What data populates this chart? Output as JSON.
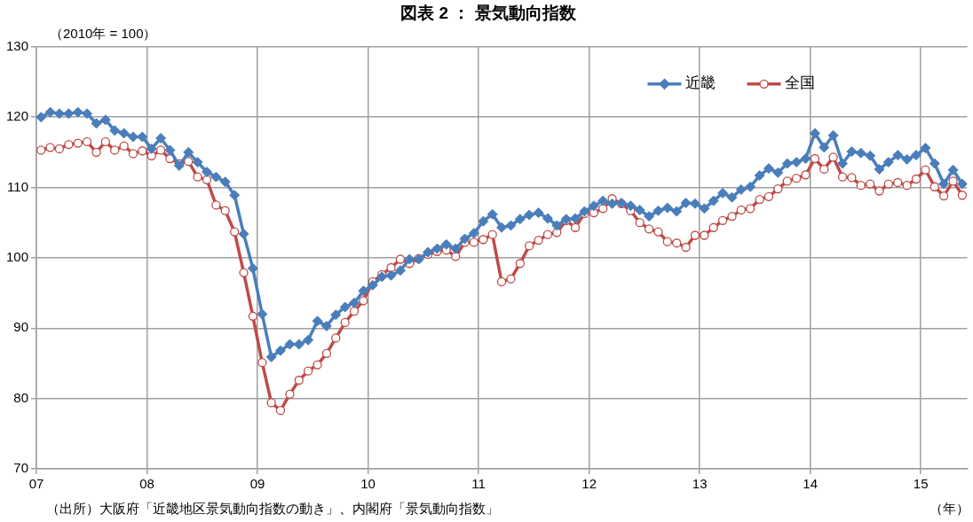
{
  "chart_data": {
    "type": "line",
    "title": "図表 2 ： 景気動向指数",
    "ylabel": "（2010年 = 100）",
    "xlabel": "（年）",
    "annotations": [
      "（出所）大阪府「近畿地区景気動向指数の動き」、内閣府「景気動向指数」"
    ],
    "x": [
      2007.042,
      2007.125,
      2007.208,
      2007.292,
      2007.375,
      2007.458,
      2007.542,
      2007.625,
      2007.708,
      2007.792,
      2007.875,
      2007.958,
      2008.042,
      2008.125,
      2008.208,
      2008.292,
      2008.375,
      2008.458,
      2008.542,
      2008.625,
      2008.708,
      2008.792,
      2008.875,
      2008.958,
      2009.042,
      2009.125,
      2009.208,
      2009.292,
      2009.375,
      2009.458,
      2009.542,
      2009.625,
      2009.708,
      2009.792,
      2009.875,
      2009.958,
      2010.042,
      2010.125,
      2010.208,
      2010.292,
      2010.375,
      2010.458,
      2010.542,
      2010.625,
      2010.708,
      2010.792,
      2010.875,
      2010.958,
      2011.042,
      2011.125,
      2011.208,
      2011.292,
      2011.375,
      2011.458,
      2011.542,
      2011.625,
      2011.708,
      2011.792,
      2011.875,
      2011.958,
      2012.042,
      2012.125,
      2012.208,
      2012.292,
      2012.375,
      2012.458,
      2012.542,
      2012.625,
      2012.708,
      2012.792,
      2012.875,
      2012.958,
      2013.042,
      2013.125,
      2013.208,
      2013.292,
      2013.375,
      2013.458,
      2013.542,
      2013.625,
      2013.708,
      2013.792,
      2013.875,
      2013.958,
      2014.042,
      2014.125,
      2014.208,
      2014.292,
      2014.375,
      2014.458,
      2014.542,
      2014.625,
      2014.708,
      2014.792,
      2014.875,
      2014.958,
      2015.042,
      2015.125,
      2015.208,
      2015.292,
      2015.375
    ],
    "series": [
      {
        "name": "近畿",
        "color": "#4a7ebb",
        "marker": "diamond",
        "values": [
          120.0,
          120.7,
          120.5,
          120.5,
          120.7,
          120.5,
          119.1,
          119.6,
          118.1,
          117.7,
          117.2,
          117.2,
          115.5,
          117.0,
          115.3,
          113.1,
          115.0,
          113.6,
          112.2,
          111.5,
          110.8,
          108.9,
          103.4,
          98.5,
          92.0,
          85.9,
          86.8,
          87.7,
          87.7,
          88.3,
          91.0,
          90.3,
          91.9,
          93.0,
          93.6,
          95.3,
          96.1,
          97.3,
          97.5,
          98.2,
          99.8,
          99.8,
          100.8,
          101.3,
          101.9,
          101.3,
          102.7,
          103.5,
          105.2,
          106.2,
          104.3,
          104.6,
          105.5,
          106.1,
          106.4,
          105.6,
          104.6,
          105.5,
          105.6,
          106.6,
          107.4,
          108.1,
          107.7,
          107.8,
          107.4,
          106.8,
          105.9,
          106.7,
          107.1,
          106.6,
          107.8,
          107.7,
          107.0,
          108.1,
          109.2,
          108.6,
          109.7,
          110.1,
          111.7,
          112.7,
          112.1,
          113.4,
          113.6,
          114.1,
          117.7,
          115.7,
          117.4,
          113.4,
          115.1,
          114.9,
          114.5,
          112.6,
          113.6,
          114.6,
          114.0,
          114.6,
          115.6,
          113.4,
          110.5,
          112.5,
          110.5
        ]
      },
      {
        "name": "全国",
        "color": "#be4b48",
        "marker": "circle",
        "values": [
          115.3,
          115.7,
          115.5,
          116.1,
          116.3,
          116.5,
          115.0,
          116.5,
          115.3,
          115.9,
          114.8,
          115.2,
          114.5,
          115.3,
          114.1,
          113.4,
          113.7,
          111.5,
          111.1,
          107.5,
          106.7,
          103.7,
          97.9,
          91.7,
          85.1,
          79.4,
          78.3,
          80.6,
          82.6,
          83.9,
          84.8,
          86.4,
          88.6,
          90.8,
          92.4,
          93.9,
          96.6,
          97.6,
          98.6,
          99.8,
          99.2,
          99.9,
          100.5,
          100.9,
          101.1,
          100.2,
          102.2,
          102.2,
          102.6,
          103.3,
          96.6,
          97.0,
          99.2,
          101.7,
          102.5,
          103.3,
          103.6,
          105.3,
          104.3,
          106.3,
          106.4,
          107.0,
          108.4,
          107.7,
          106.7,
          105.0,
          104.1,
          103.7,
          102.3,
          102.1,
          101.5,
          103.2,
          103.2,
          104.3,
          105.3,
          105.9,
          106.8,
          107.0,
          108.3,
          108.7,
          109.8,
          110.9,
          111.3,
          111.8,
          114.1,
          112.6,
          114.3,
          111.5,
          111.4,
          110.3,
          110.5,
          109.5,
          110.5,
          110.7,
          110.3,
          111.2,
          112.5,
          110.1,
          108.8,
          110.9,
          108.9
        ]
      }
    ],
    "xlim": [
      2007,
      2015.42
    ],
    "xticks": [
      {
        "value": 2007,
        "label": "07"
      },
      {
        "value": 2008,
        "label": "08"
      },
      {
        "value": 2009,
        "label": "09"
      },
      {
        "value": 2010,
        "label": "10"
      },
      {
        "value": 2011,
        "label": "11"
      },
      {
        "value": 2012,
        "label": "12"
      },
      {
        "value": 2013,
        "label": "13"
      },
      {
        "value": 2014,
        "label": "14"
      },
      {
        "value": 2015,
        "label": "15"
      }
    ],
    "ylim": [
      70,
      130
    ],
    "yticks": [
      70,
      80,
      90,
      100,
      110,
      120,
      130
    ],
    "grid": true,
    "legend": "top right",
    "line_style": "solid"
  }
}
